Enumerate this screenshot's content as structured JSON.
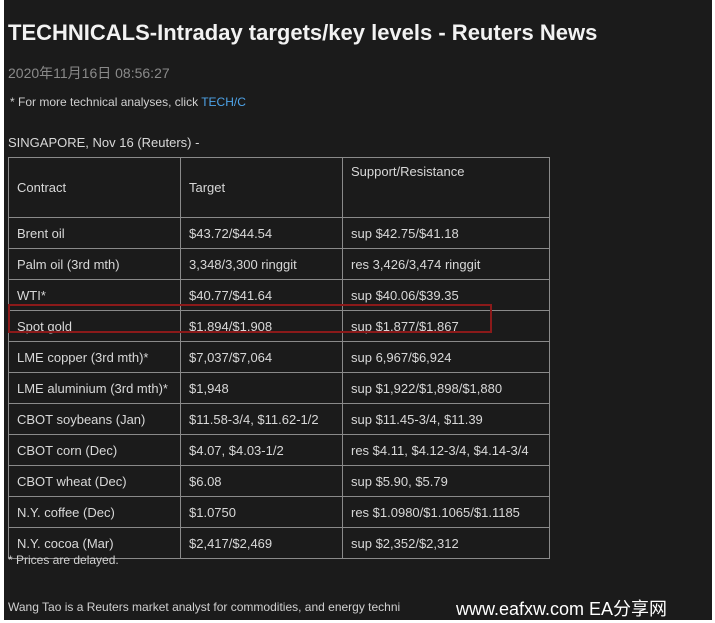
{
  "header": {
    "title": "TECHNICALS-Intraday targets/key levels - Reuters News",
    "date": "2020年11月16日 08:56:27"
  },
  "note": {
    "text": "* For more technical analyses, click",
    "link": "TECH/C"
  },
  "dateline": "SINGAPORE, Nov 16 (Reuters) -",
  "table": {
    "columns": [
      "Contract",
      "Target",
      "Support/Resistance"
    ],
    "rows": [
      [
        "Brent oil",
        "$43.72/$44.54",
        "sup $42.75/$41.18"
      ],
      [
        "Palm oil (3rd mth)",
        "3,348/3,300 ringgit",
        "res 3,426/3,474 ringgit"
      ],
      [
        "WTI*",
        "$40.77/$41.64",
        "sup $40.06/$39.35"
      ],
      [
        "Spot gold",
        "$1,894/$1,908",
        "sup $1,877/$1,867"
      ],
      [
        "LME copper (3rd mth)*",
        "$7,037/$7,064",
        "sup 6,967/$6,924"
      ],
      [
        "LME aluminium (3rd mth)*",
        "$1,948",
        "sup $1,922/$1,898/$1,880"
      ],
      [
        "CBOT soybeans (Jan)",
        "$11.58-3/4, $11.62-1/2",
        "sup $11.45-3/4, $11.39"
      ],
      [
        "CBOT corn (Dec)",
        "$4.07, $4.03-1/2",
        "res $4.11, $4.12-3/4, $4.14-3/4"
      ],
      [
        "CBOT wheat (Dec)",
        "$6.08",
        "sup $5.90, $5.79"
      ],
      [
        "N.Y. coffee (Dec)",
        "$1.0750",
        "res $1.0980/$1.1065/$1.1185"
      ],
      [
        "N.Y. cocoa (Mar)",
        "$2,417/$2,469",
        "sup $2,352/$2,312"
      ]
    ]
  },
  "footnote": "* Prices are delayed.",
  "byline": "Wang Tao is a Reuters market analyst for commodities, and energy techni",
  "watermark": "www.eafxw.com EA分享网"
}
